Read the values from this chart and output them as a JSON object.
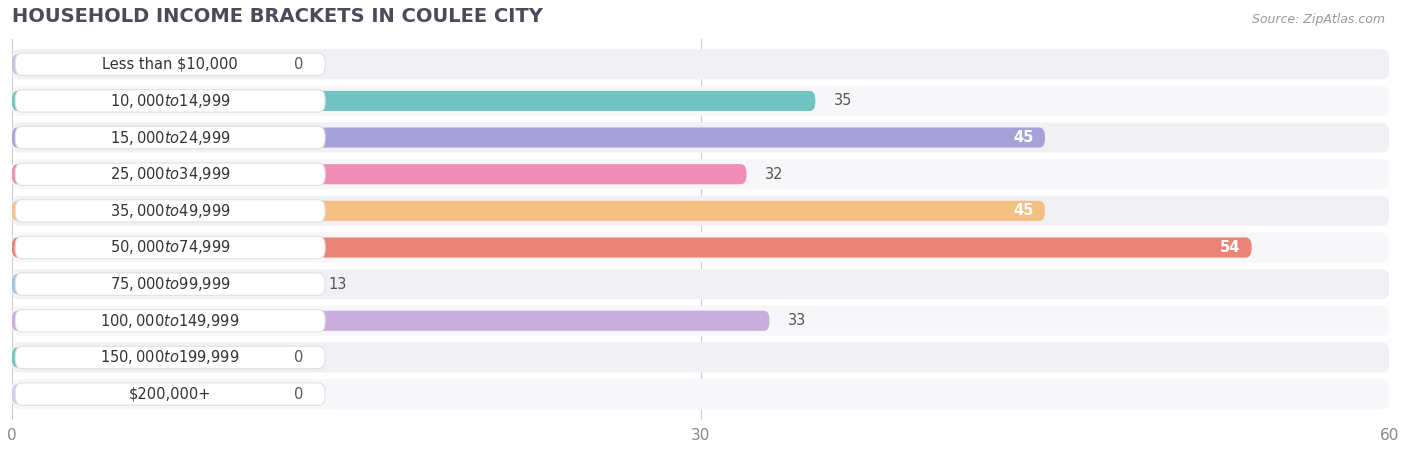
{
  "title": "HOUSEHOLD INCOME BRACKETS IN COULEE CITY",
  "source": "Source: ZipAtlas.com",
  "categories": [
    "Less than $10,000",
    "$10,000 to $14,999",
    "$15,000 to $24,999",
    "$25,000 to $34,999",
    "$35,000 to $49,999",
    "$50,000 to $74,999",
    "$75,000 to $99,999",
    "$100,000 to $149,999",
    "$150,000 to $199,999",
    "$200,000+"
  ],
  "values": [
    0,
    35,
    45,
    32,
    45,
    54,
    13,
    33,
    0,
    0
  ],
  "bar_colors": [
    "#c9b3d9",
    "#5bbcb8",
    "#9b93d4",
    "#f07aaa",
    "#f5b870",
    "#e87060",
    "#90bce0",
    "#c0a0d8",
    "#5bbcb8",
    "#c8c8f0"
  ],
  "xlim": [
    0,
    60
  ],
  "xticks": [
    0,
    30,
    60
  ],
  "label_inside": [
    false,
    false,
    true,
    false,
    true,
    true,
    false,
    false,
    false,
    false
  ],
  "background_color": "#f0f0f0",
  "row_bg_color": "#f7f7f7",
  "title_fontsize": 14,
  "label_fontsize": 10.5,
  "tick_fontsize": 11,
  "value_fontsize": 10.5
}
